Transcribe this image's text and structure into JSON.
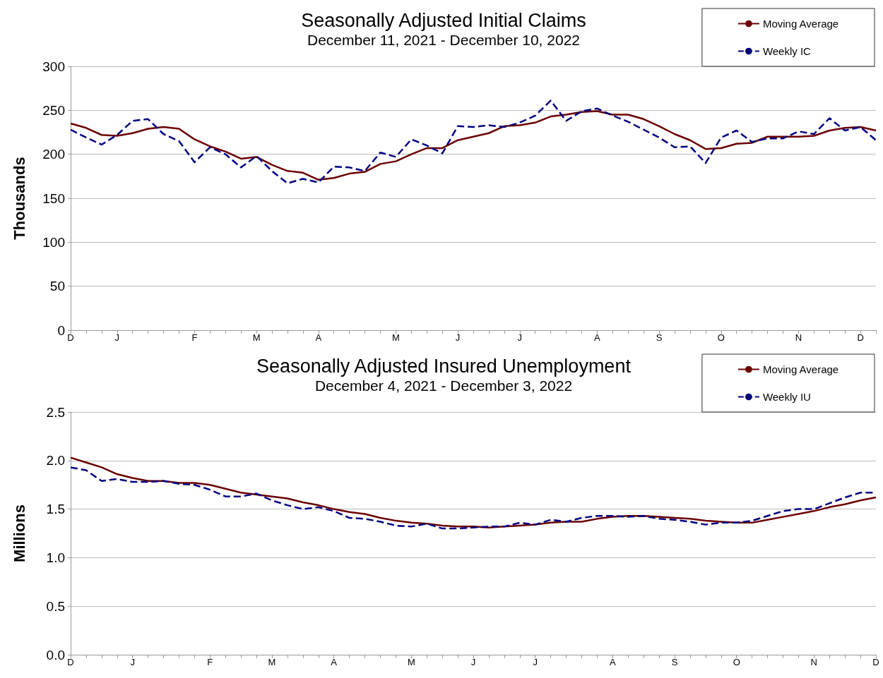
{
  "chart_data": [
    {
      "type": "line",
      "title": "Seasonally Adjusted Initial Claims",
      "subtitle": "December 11, 2021 - December 10, 2022",
      "ylabel": "Thousands",
      "categories": [
        "D",
        null,
        null,
        "J",
        null,
        null,
        null,
        null,
        "F",
        null,
        null,
        null,
        "M",
        null,
        null,
        null,
        "A",
        null,
        null,
        null,
        null,
        "M",
        null,
        null,
        null,
        "J",
        null,
        null,
        null,
        "J",
        null,
        null,
        null,
        null,
        "A",
        null,
        null,
        null,
        "S",
        null,
        null,
        null,
        "O",
        null,
        null,
        null,
        null,
        "N",
        null,
        null,
        null,
        "D",
        null
      ],
      "series": [
        {
          "name": "Moving Average",
          "color": "#6b0000",
          "line_style": "solid",
          "values": [
            235,
            230,
            222,
            221,
            224,
            229,
            231,
            229,
            217,
            209,
            203,
            195,
            197,
            188,
            181,
            179,
            171,
            173,
            178,
            180,
            189,
            192,
            200,
            207,
            207,
            216,
            220,
            224,
            232,
            233,
            236,
            243,
            245,
            248,
            249,
            245,
            245,
            240,
            232,
            223,
            216,
            206,
            207,
            212,
            213,
            220,
            220,
            220,
            221,
            227,
            230,
            231,
            227
          ]
        },
        {
          "name": "Weekly IC",
          "color": "#000080",
          "line_style": "dashed",
          "values": [
            228,
            219,
            211,
            222,
            238,
            240,
            223,
            215,
            191,
            208,
            200,
            185,
            198,
            181,
            167,
            172,
            168,
            186,
            185,
            181,
            202,
            197,
            217,
            210,
            201,
            232,
            231,
            233,
            231,
            236,
            244,
            261,
            238,
            249,
            252,
            244,
            237,
            228,
            219,
            208,
            209,
            190,
            219,
            227,
            214,
            218,
            218,
            226,
            223,
            241,
            227,
            231,
            216
          ]
        }
      ],
      "ylim": [
        0,
        300
      ],
      "yticks": [
        0,
        50,
        100,
        150,
        200,
        250,
        300
      ],
      "grid": "y",
      "legend": "top right",
      "marker": "none"
    },
    {
      "type": "line",
      "title": "Seasonally Adjusted Insured Unemployment",
      "subtitle": "December 4, 2021 - December 3, 2022",
      "ylabel": "Millions",
      "categories": [
        "D",
        null,
        null,
        null,
        "J",
        null,
        null,
        null,
        null,
        "F",
        null,
        null,
        null,
        "M",
        null,
        null,
        null,
        "A",
        null,
        null,
        null,
        null,
        "M",
        null,
        null,
        null,
        "J",
        null,
        null,
        null,
        "J",
        null,
        null,
        null,
        null,
        "A",
        null,
        null,
        null,
        "S",
        null,
        null,
        null,
        "O",
        null,
        null,
        null,
        null,
        "N",
        null,
        null,
        null,
        "D"
      ],
      "series": [
        {
          "name": "Moving Average",
          "color": "#6b0000",
          "line_style": "solid",
          "values": [
            2.03,
            1.98,
            1.93,
            1.86,
            1.82,
            1.79,
            1.79,
            1.77,
            1.77,
            1.75,
            1.71,
            1.67,
            1.65,
            1.63,
            1.61,
            1.57,
            1.54,
            1.5,
            1.47,
            1.45,
            1.41,
            1.38,
            1.36,
            1.35,
            1.33,
            1.32,
            1.32,
            1.31,
            1.32,
            1.33,
            1.34,
            1.36,
            1.37,
            1.37,
            1.4,
            1.42,
            1.43,
            1.43,
            1.42,
            1.41,
            1.4,
            1.38,
            1.37,
            1.36,
            1.36,
            1.39,
            1.42,
            1.45,
            1.48,
            1.52,
            1.55,
            1.59,
            1.62
          ]
        },
        {
          "name": "Weekly IU",
          "color": "#000080",
          "line_style": "dashed",
          "values": [
            1.93,
            1.9,
            1.79,
            1.81,
            1.78,
            1.78,
            1.79,
            1.76,
            1.75,
            1.7,
            1.63,
            1.63,
            1.66,
            1.59,
            1.54,
            1.5,
            1.52,
            1.48,
            1.41,
            1.4,
            1.37,
            1.33,
            1.32,
            1.35,
            1.3,
            1.3,
            1.31,
            1.32,
            1.32,
            1.36,
            1.34,
            1.39,
            1.37,
            1.41,
            1.43,
            1.43,
            1.42,
            1.43,
            1.4,
            1.39,
            1.37,
            1.34,
            1.36,
            1.36,
            1.38,
            1.43,
            1.48,
            1.5,
            1.5,
            1.56,
            1.62,
            1.67,
            1.67
          ]
        }
      ],
      "ylim": [
        0,
        2.5
      ],
      "yticks": [
        {
          "value": 0,
          "label": "0.0"
        },
        0.5,
        {
          "value": 1,
          "label": "1.0"
        },
        1.5,
        {
          "value": 2,
          "label": "2.0"
        },
        2.5
      ],
      "grid": "y",
      "legend": "top right",
      "marker": "none"
    }
  ]
}
